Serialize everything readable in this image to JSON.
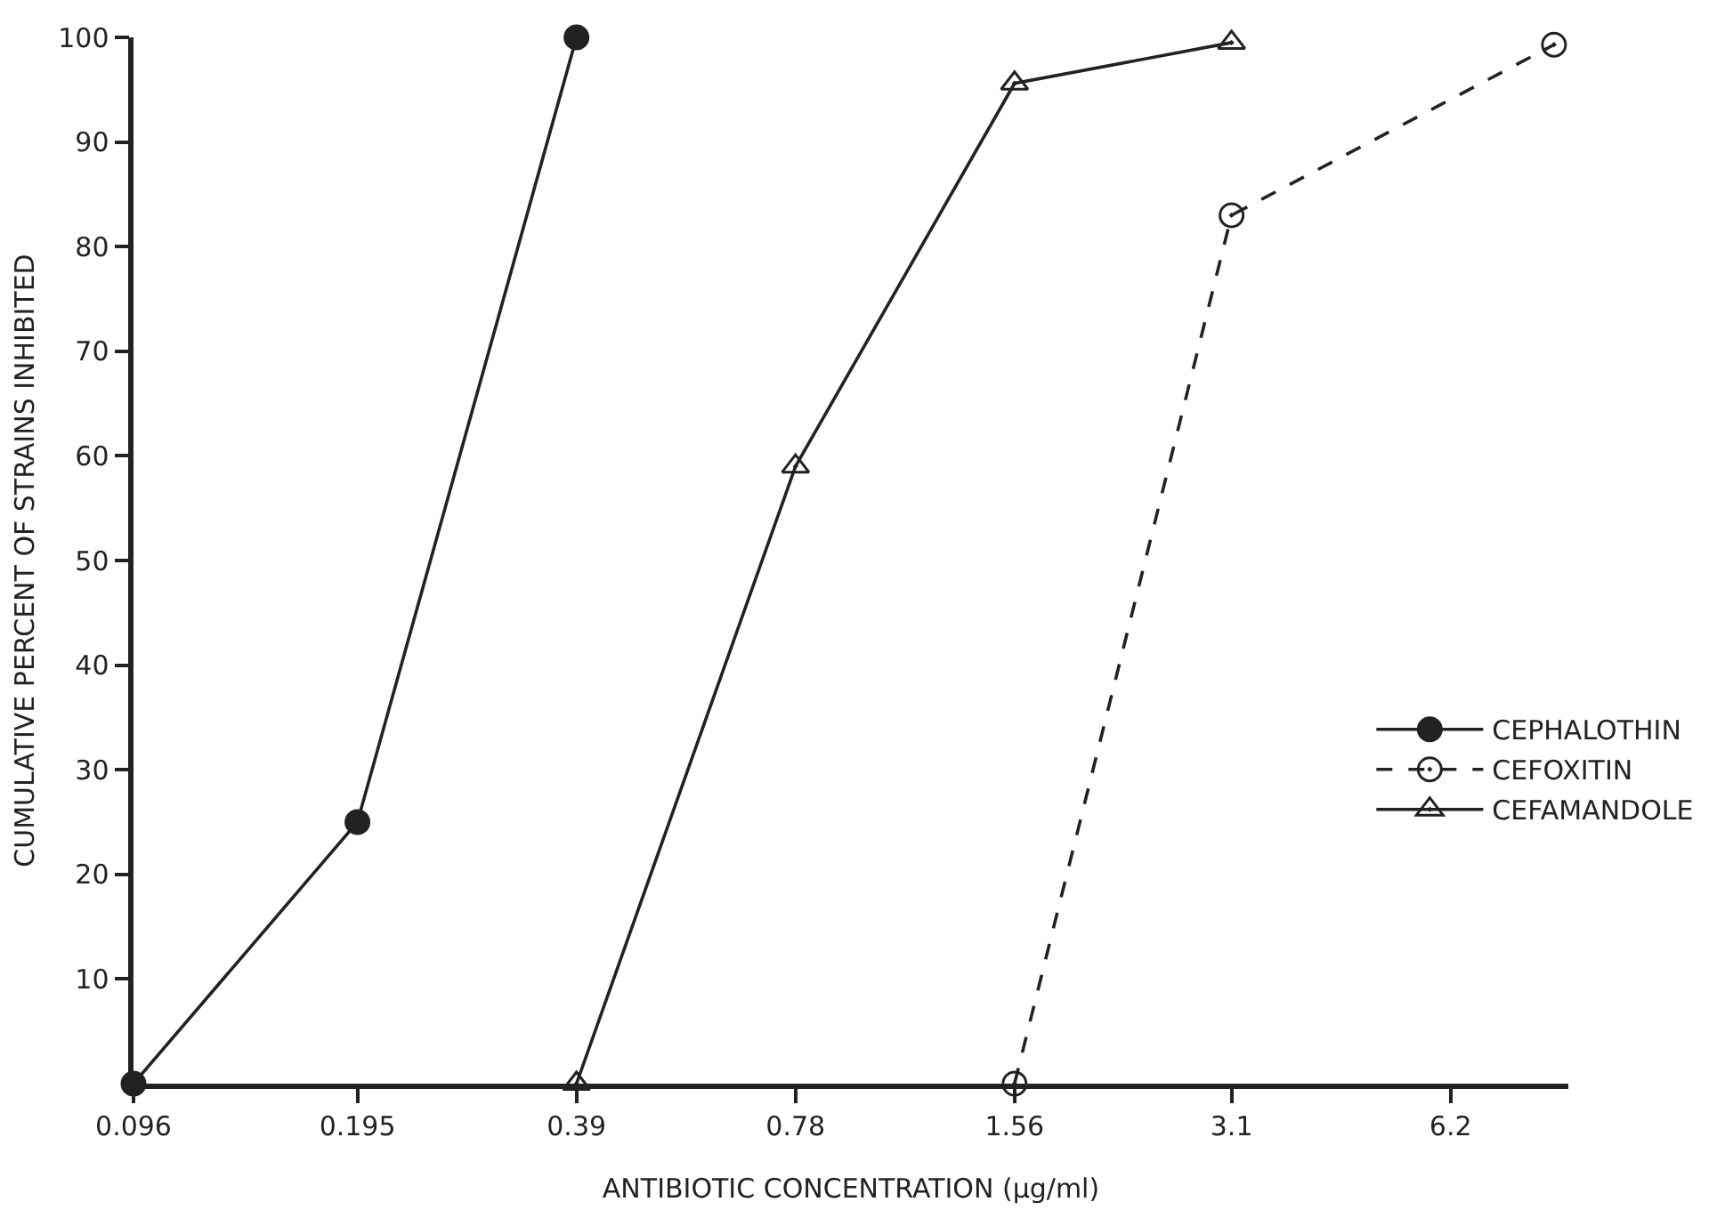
{
  "chart_data": {
    "type": "line",
    "xlabel": "ANTIBIOTIC CONCENTRATION (μg/ml)",
    "ylabel": "CUMULATIVE PERCENT OF STRAINS INHIBITED",
    "log": "x",
    "xlim": [
      0.096,
      9
    ],
    "xticks": [
      0.096,
      0.195,
      0.39,
      0.78,
      1.56,
      3.1,
      6.2
    ],
    "ylim": [
      0,
      100
    ],
    "yticks": [
      10,
      20,
      30,
      40,
      50,
      60,
      70,
      80,
      90,
      100
    ],
    "legend": "right",
    "series": [
      {
        "name": "CEPHALOTHIN",
        "color": "#222222",
        "marker": "circle",
        "line_style": "solid",
        "x": [
          0.096,
          0.195,
          0.39
        ],
        "values": [
          0,
          25,
          100
        ]
      },
      {
        "name": "CEFOXITIN",
        "color": "#222222",
        "marker": "circle",
        "line_style": "dashed",
        "x": [
          1.56,
          3.1,
          8.6
        ],
        "values": [
          0,
          83,
          99.3
        ]
      },
      {
        "name": "CEFAMANDOLE",
        "color": "#222222",
        "marker": "triangle",
        "line_style": "solid",
        "x": [
          0.39,
          0.78,
          1.56,
          3.1
        ],
        "values": [
          0,
          59,
          95.6,
          99.5
        ]
      }
    ]
  }
}
